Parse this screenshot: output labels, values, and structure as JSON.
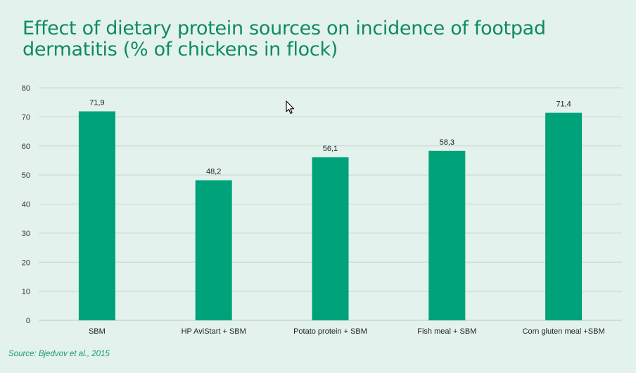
{
  "title": "Effect of dietary protein sources on incidence of footpad dermatitis (% of chickens in flock)",
  "source": "Source: Bjedvov et al., 2015",
  "colors": {
    "background": "#e3f2ec",
    "bar": "#00a27a",
    "title": "#0f8a63",
    "grid": "#c4d5ce"
  },
  "cursor_icon": "arrow-pointer-icon",
  "chart_data": {
    "type": "bar",
    "title": "Effect of dietary protein sources on incidence of footpad dermatitis (% of chickens in flock)",
    "xlabel": "",
    "ylabel": "",
    "ylim": [
      0,
      80
    ],
    "yticks": [
      0,
      10,
      20,
      30,
      40,
      50,
      60,
      70,
      80
    ],
    "grid": true,
    "legend": "none",
    "categories": [
      "SBM",
      "HP AviStart + SBM",
      "Potato protein + SBM",
      "Fish meal + SBM",
      "Corn gluten meal +SBM"
    ],
    "values": [
      71.9,
      48.2,
      56.1,
      58.3,
      71.4
    ],
    "data_labels": [
      "71,9",
      "48,2",
      "56,1",
      "58,3",
      "71,4"
    ]
  }
}
